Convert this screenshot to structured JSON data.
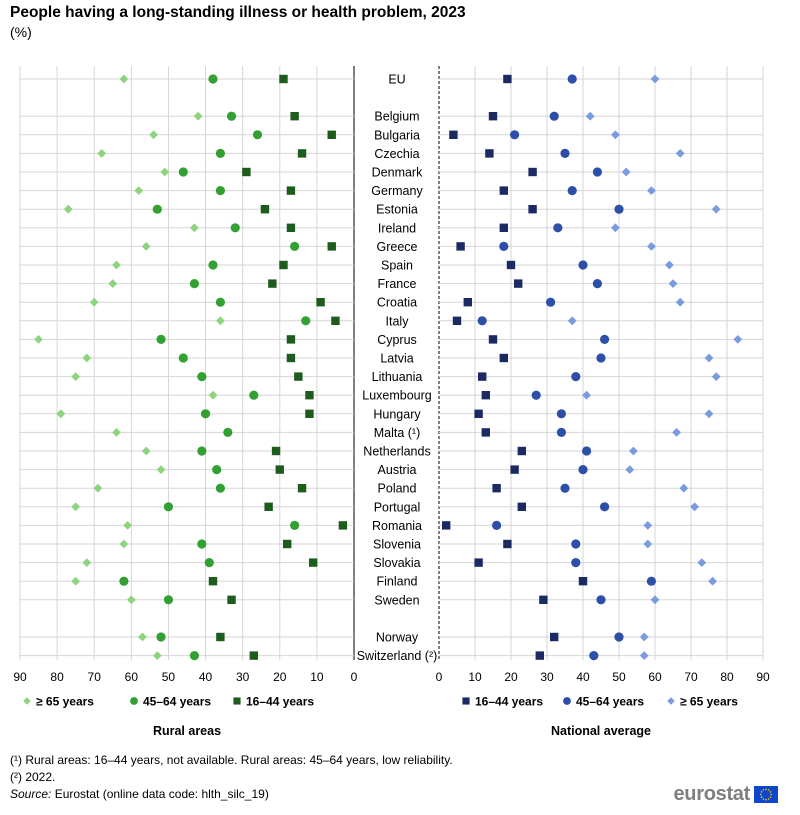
{
  "header": {
    "title": "People having a long-standing illness or health problem, 2023",
    "subtitle": "(%)"
  },
  "chart_data": [
    {
      "type": "scatter",
      "panel": "Rural areas",
      "x_axis": "reversed",
      "xlim": [
        90,
        0
      ],
      "xticks": [
        90,
        80,
        70,
        60,
        50,
        40,
        30,
        20,
        10,
        0
      ],
      "grid": "vertical and horizontal",
      "legend_position": "bottom",
      "categories": [
        "EU",
        "Belgium",
        "Bulgaria",
        "Czechia",
        "Denmark",
        "Germany",
        "Estonia",
        "Ireland",
        "Greece",
        "Spain",
        "France",
        "Croatia",
        "Italy",
        "Cyprus",
        "Latvia",
        "Lithuania",
        "Luxembourg",
        "Hungary",
        "Malta (¹)",
        "Netherlands",
        "Austria",
        "Poland",
        "Portugal",
        "Romania",
        "Slovenia",
        "Slovakia",
        "Finland",
        "Sweden",
        "Norway",
        "Switzerland (²)"
      ],
      "series": [
        {
          "name": "≥ 65 years",
          "marker": "diamond",
          "color": "#8ed47f",
          "values": [
            62,
            42,
            54,
            68,
            51,
            58,
            77,
            43,
            56,
            64,
            65,
            70,
            36,
            85,
            72,
            75,
            38,
            79,
            64,
            56,
            52,
            69,
            75,
            61,
            62,
            72,
            75,
            60,
            57,
            53
          ]
        },
        {
          "name": "45–64 years",
          "marker": "circle",
          "color": "#33a033",
          "values": [
            38,
            33,
            26,
            36,
            46,
            36,
            53,
            32,
            16,
            38,
            43,
            36,
            13,
            52,
            46,
            41,
            27,
            40,
            34,
            41,
            37,
            36,
            50,
            16,
            41,
            39,
            62,
            50,
            52,
            43
          ]
        },
        {
          "name": "16–44 years",
          "marker": "square",
          "color": "#1e5c1e",
          "values": [
            19,
            16,
            6,
            14,
            29,
            17,
            24,
            17,
            6,
            19,
            22,
            9,
            5,
            17,
            17,
            15,
            12,
            12,
            null,
            21,
            20,
            14,
            23,
            3,
            18,
            11,
            38,
            33,
            36,
            27
          ]
        }
      ]
    },
    {
      "type": "scatter",
      "panel": "National average",
      "xlim": [
        0,
        90
      ],
      "xticks": [
        0,
        10,
        20,
        30,
        40,
        50,
        60,
        70,
        80,
        90
      ],
      "grid": "vertical and horizontal",
      "legend_position": "bottom",
      "categories": [
        "EU",
        "Belgium",
        "Bulgaria",
        "Czechia",
        "Denmark",
        "Germany",
        "Estonia",
        "Ireland",
        "Greece",
        "Spain",
        "France",
        "Croatia",
        "Italy",
        "Cyprus",
        "Latvia",
        "Lithuania",
        "Luxembourg",
        "Hungary",
        "Malta (¹)",
        "Netherlands",
        "Austria",
        "Poland",
        "Portugal",
        "Romania",
        "Slovenia",
        "Slovakia",
        "Finland",
        "Sweden",
        "Norway",
        "Switzerland (²)"
      ],
      "series": [
        {
          "name": "16–44 years",
          "marker": "square",
          "color": "#1b2a63",
          "values": [
            19,
            15,
            4,
            14,
            26,
            18,
            26,
            18,
            6,
            20,
            22,
            8,
            5,
            15,
            18,
            12,
            13,
            11,
            13,
            23,
            21,
            16,
            23,
            2,
            19,
            11,
            40,
            29,
            32,
            28
          ]
        },
        {
          "name": "45–64 years",
          "marker": "circle",
          "color": "#2e4fa8",
          "values": [
            37,
            32,
            21,
            35,
            44,
            37,
            50,
            33,
            18,
            40,
            44,
            31,
            12,
            46,
            45,
            38,
            27,
            34,
            34,
            41,
            40,
            35,
            46,
            16,
            38,
            38,
            59,
            45,
            50,
            43
          ]
        },
        {
          "name": "≥ 65 years",
          "marker": "diamond",
          "color": "#7a9be0",
          "values": [
            60,
            42,
            49,
            67,
            52,
            59,
            77,
            49,
            59,
            64,
            65,
            67,
            37,
            83,
            75,
            77,
            41,
            75,
            66,
            54,
            53,
            68,
            71,
            58,
            58,
            73,
            76,
            60,
            57,
            57
          ]
        }
      ]
    }
  ],
  "notes": {
    "note1": "(¹) Rural areas: 16–44 years, not available. Rural areas: 45–64 years, low reliability.",
    "note2": "(²) 2022.",
    "source_label": "Source:",
    "source_text": " Eurostat (online data code: hlth_silc_19)"
  },
  "logo": {
    "text": "eurostat",
    "flag_color": "#0e47cb",
    "star_color": "#ffcc00"
  }
}
